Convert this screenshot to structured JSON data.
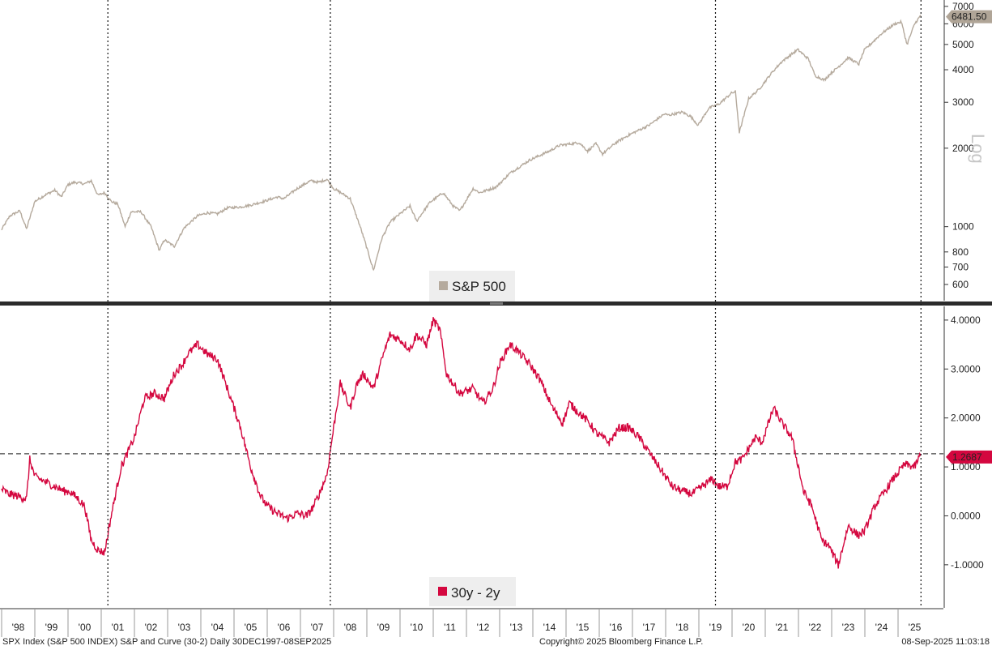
{
  "footer": {
    "left": "SPX Index (S&P 500 INDEX) S&P and Curve (30-2)  Daily 30DEC1997-08SEP2025",
    "center": "Copyright© 2025 Bloomberg Finance L.P.",
    "right": "08-Sep-2025 11:03:18"
  },
  "chart_data": [
    {
      "type": "line",
      "panel": "top",
      "yscale": "log",
      "yscale_label": "Log",
      "ylim": [
        520,
        7300
      ],
      "ytick_labels": [
        "600",
        "700",
        "800",
        "1000",
        "2000",
        "3000",
        "4000",
        "5000",
        "6000",
        "7000"
      ],
      "last_value_label": "6481.50",
      "series": [
        {
          "name": "S&P 500",
          "color": "#b5aa9d",
          "x": [
            1997.99,
            1998.25,
            1998.55,
            1998.75,
            1999.0,
            1999.3,
            1999.6,
            1999.8,
            2000.0,
            2000.2,
            2000.5,
            2000.7,
            2000.9,
            2001.1,
            2001.3,
            2001.5,
            2001.72,
            2001.9,
            2002.2,
            2002.5,
            2002.75,
            2002.9,
            2003.2,
            2003.5,
            2003.9,
            2004.2,
            2004.5,
            2004.8,
            2005.2,
            2005.5,
            2005.9,
            2006.3,
            2006.5,
            2006.9,
            2007.3,
            2007.55,
            2007.8,
            2008.0,
            2008.3,
            2008.5,
            2008.8,
            2008.95,
            2009.2,
            2009.45,
            2009.7,
            2010.0,
            2010.3,
            2010.5,
            2010.9,
            2011.3,
            2011.6,
            2011.8,
            2012.2,
            2012.4,
            2012.9,
            2013.3,
            2013.9,
            2014.5,
            2014.8,
            2015.4,
            2015.65,
            2015.9,
            2016.1,
            2016.5,
            2016.9,
            2017.5,
            2017.95,
            2018.1,
            2018.5,
            2018.75,
            2018.98,
            2019.3,
            2019.6,
            2019.98,
            2020.1,
            2020.22,
            2020.5,
            2020.8,
            2021.2,
            2021.5,
            2021.98,
            2022.3,
            2022.5,
            2022.78,
            2022.95,
            2023.2,
            2023.5,
            2023.82,
            2023.98,
            2024.3,
            2024.5,
            2024.9,
            2025.1,
            2025.27,
            2025.5,
            2025.69
          ],
          "y": [
            970,
            1100,
            1150,
            980,
            1250,
            1320,
            1380,
            1300,
            1450,
            1480,
            1460,
            1500,
            1320,
            1350,
            1250,
            1220,
            1000,
            1140,
            1140,
            1000,
            810,
            890,
            840,
            990,
            1100,
            1130,
            1120,
            1180,
            1190,
            1210,
            1250,
            1300,
            1280,
            1400,
            1500,
            1480,
            1520,
            1400,
            1330,
            1280,
            1000,
            870,
            680,
            900,
            1040,
            1120,
            1200,
            1050,
            1240,
            1350,
            1200,
            1150,
            1400,
            1350,
            1420,
            1600,
            1800,
            1950,
            2050,
            2100,
            1950,
            2080,
            1900,
            2100,
            2250,
            2450,
            2700,
            2680,
            2750,
            2650,
            2450,
            2850,
            2950,
            3250,
            3300,
            2300,
            3100,
            3350,
            3900,
            4300,
            4780,
            4400,
            3800,
            3650,
            3850,
            4100,
            4450,
            4200,
            4750,
            5200,
            5500,
            6000,
            6100,
            5000,
            6000,
            6481.5
          ]
        }
      ]
    },
    {
      "type": "line",
      "panel": "bottom",
      "ylim": [
        -1.88,
        4.28
      ],
      "ytick_labels": [
        "-1.0000",
        "0.0000",
        "1.0000",
        "2.0000",
        "3.0000",
        "4.0000"
      ],
      "reference_line": 1.2687,
      "last_value_label": "1.2687",
      "series": [
        {
          "name": "30y - 2y",
          "color": "#d4073f",
          "x": [
            1997.99,
            1998.2,
            1998.5,
            1998.75,
            1998.85,
            1999.0,
            1999.3,
            1999.6,
            1999.9,
            2000.05,
            2000.3,
            2000.5,
            2000.7,
            2000.9,
            2001.1,
            2001.3,
            2001.6,
            2001.8,
            2002.0,
            2002.3,
            2002.6,
            2002.9,
            2003.2,
            2003.45,
            2003.6,
            2003.9,
            2004.2,
            2004.5,
            2004.8,
            2005.2,
            2005.5,
            2005.8,
            2006.0,
            2006.3,
            2006.6,
            2006.9,
            2007.2,
            2007.4,
            2007.6,
            2007.8,
            2008.0,
            2008.2,
            2008.5,
            2008.7,
            2008.9,
            2009.2,
            2009.5,
            2009.7,
            2010.0,
            2010.3,
            2010.5,
            2010.8,
            2011.0,
            2011.2,
            2011.4,
            2011.6,
            2011.8,
            2012.2,
            2012.5,
            2012.8,
            2013.0,
            2013.3,
            2013.5,
            2013.9,
            2014.2,
            2014.6,
            2014.9,
            2015.1,
            2015.4,
            2015.7,
            2015.9,
            2016.3,
            2016.6,
            2016.9,
            2017.2,
            2017.6,
            2017.9,
            2018.2,
            2018.5,
            2018.8,
            2019.1,
            2019.4,
            2019.6,
            2019.85,
            2020.1,
            2020.3,
            2020.7,
            2020.9,
            2021.1,
            2021.25,
            2021.5,
            2021.8,
            2022.0,
            2022.15,
            2022.4,
            2022.7,
            2022.9,
            2023.2,
            2023.5,
            2023.8,
            2024.0,
            2024.3,
            2024.6,
            2024.9,
            2025.2,
            2025.5,
            2025.69
          ],
          "y": [
            0.55,
            0.45,
            0.4,
            0.35,
            1.15,
            0.8,
            0.7,
            0.6,
            0.5,
            0.5,
            0.35,
            0.2,
            -0.5,
            -0.7,
            -0.75,
            0.0,
            1.0,
            1.3,
            1.6,
            2.4,
            2.5,
            2.4,
            2.9,
            3.1,
            3.3,
            3.5,
            3.3,
            3.2,
            2.6,
            1.8,
            1.0,
            0.4,
            0.2,
            0.05,
            -0.05,
            0.05,
            0.0,
            0.2,
            0.5,
            0.85,
            1.8,
            2.7,
            2.2,
            2.7,
            2.9,
            2.6,
            3.3,
            3.7,
            3.6,
            3.4,
            3.7,
            3.5,
            4.0,
            3.8,
            2.9,
            2.7,
            2.5,
            2.6,
            2.3,
            2.6,
            3.1,
            3.5,
            3.4,
            3.1,
            2.8,
            2.2,
            1.9,
            2.3,
            2.1,
            1.9,
            1.7,
            1.5,
            1.8,
            1.8,
            1.6,
            1.2,
            0.9,
            0.6,
            0.5,
            0.45,
            0.6,
            0.75,
            0.6,
            0.6,
            1.1,
            1.15,
            1.6,
            1.5,
            1.9,
            2.2,
            1.9,
            1.6,
            1.0,
            0.5,
            0.2,
            -0.5,
            -0.6,
            -1.0,
            -0.2,
            -0.4,
            -0.3,
            0.2,
            0.5,
            0.8,
            1.05,
            1.0,
            1.2687
          ]
        }
      ]
    }
  ],
  "x_axis": {
    "tick_labels": [
      "'98",
      "'99",
      "'00",
      "'01",
      "'02",
      "'03",
      "'04",
      "'05",
      "'06",
      "'07",
      "'08",
      "'09",
      "'10",
      "'11",
      "'12",
      "'13",
      "'14",
      "'15",
      "'16",
      "'17",
      "'18",
      "'19",
      "'20",
      "'21",
      "'22",
      "'23",
      "'24",
      "'25"
    ],
    "vertical_markers": [
      2001.2,
      2007.9,
      2019.5,
      2025.69
    ]
  },
  "colors": {
    "sp500": "#b5aa9d",
    "curve": "#d4073f",
    "divider": "#2b2b2b"
  }
}
